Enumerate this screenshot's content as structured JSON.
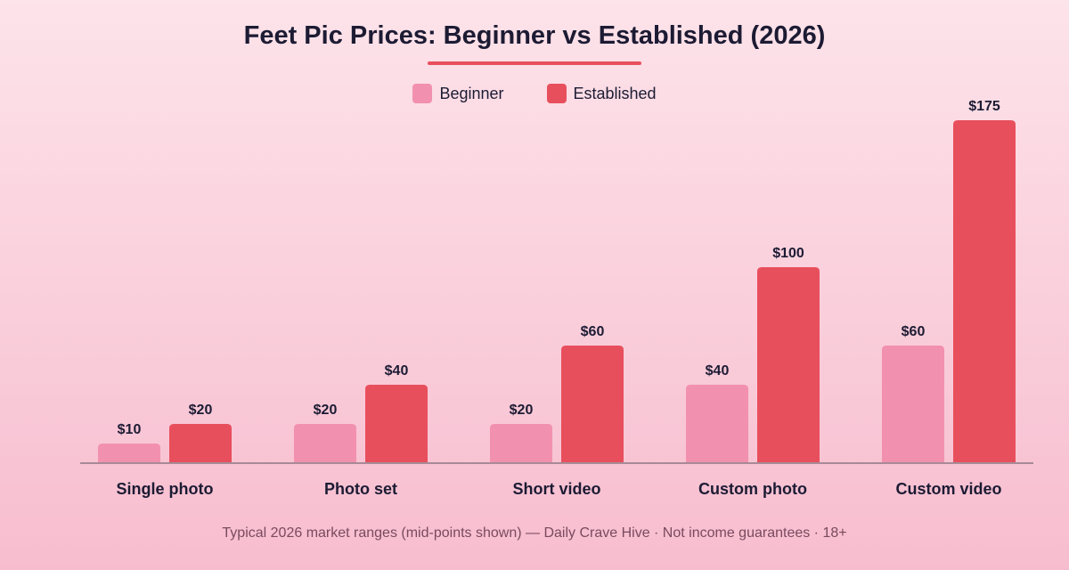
{
  "chart_data": {
    "type": "bar",
    "title": "Feet Pic Prices: Beginner vs Established (2026)",
    "categories": [
      "Single photo",
      "Photo set",
      "Short video",
      "Custom photo",
      "Custom video"
    ],
    "series": [
      {
        "name": "Beginner",
        "values": [
          10,
          20,
          20,
          40,
          60
        ],
        "color": "#f290b0"
      },
      {
        "name": "Established",
        "values": [
          20,
          40,
          60,
          100,
          175
        ],
        "color": "#e84f5d"
      }
    ],
    "value_labels": [
      [
        "$10",
        "$20",
        "$20",
        "$40",
        "$60"
      ],
      [
        "$20",
        "$40",
        "$60",
        "$100",
        "$175"
      ]
    ],
    "ylim": [
      0,
      175
    ],
    "grid": false,
    "legend_position": "top-center",
    "footnote": "Typical 2026 market ranges (mid-points shown) — Daily Crave Hive · Not income guarantees · 18+"
  }
}
